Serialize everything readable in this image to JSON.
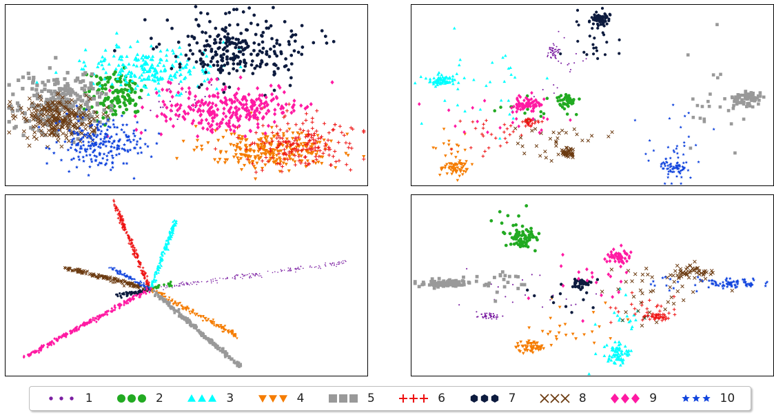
{
  "legend": {
    "items": [
      {
        "label": "1",
        "color": "#7b1fa2",
        "marker": "dot"
      },
      {
        "label": "2",
        "color": "#22aa22",
        "marker": "circle"
      },
      {
        "label": "3",
        "color": "#00ffff",
        "marker": "triangle-up"
      },
      {
        "label": "4",
        "color": "#f57c00",
        "marker": "triangle-down"
      },
      {
        "label": "5",
        "color": "#999999",
        "marker": "square"
      },
      {
        "label": "6",
        "color": "#ee1111",
        "marker": "plus"
      },
      {
        "label": "7",
        "color": "#0d1b3e",
        "marker": "hexagon"
      },
      {
        "label": "8",
        "color": "#6b3a10",
        "marker": "x"
      },
      {
        "label": "9",
        "color": "#ff1aa3",
        "marker": "diamond"
      },
      {
        "label": "10",
        "color": "#1144dd",
        "marker": "star"
      }
    ]
  },
  "chart_data": [
    {
      "type": "scatter",
      "panel": "top-left",
      "title": "",
      "xlabel": "",
      "ylabel": "",
      "xlim": [
        0,
        1
      ],
      "ylim": [
        0,
        1
      ],
      "grid": false,
      "ticks": false,
      "series": [
        {
          "name": "1",
          "clusters": [
            {
              "cx": 0.5,
              "cy": 0.55,
              "sx": 0.06,
              "sy": 0.06,
              "n": 25
            }
          ]
        },
        {
          "name": "2",
          "clusters": [
            {
              "cx": 0.3,
              "cy": 0.49,
              "sx": 0.04,
              "sy": 0.07,
              "n": 120
            }
          ]
        },
        {
          "name": "3",
          "clusters": [
            {
              "cx": 0.4,
              "cy": 0.36,
              "sx": 0.09,
              "sy": 0.06,
              "n": 220
            }
          ]
        },
        {
          "name": "4",
          "clusters": [
            {
              "cx": 0.73,
              "cy": 0.8,
              "sx": 0.09,
              "sy": 0.05,
              "n": 260
            }
          ]
        },
        {
          "name": "5",
          "clusters": [
            {
              "cx": 0.15,
              "cy": 0.55,
              "sx": 0.06,
              "sy": 0.09,
              "n": 260
            }
          ]
        },
        {
          "name": "6",
          "clusters": [
            {
              "cx": 0.82,
              "cy": 0.77,
              "sx": 0.08,
              "sy": 0.07,
              "n": 180
            }
          ]
        },
        {
          "name": "7",
          "clusters": [
            {
              "cx": 0.64,
              "cy": 0.24,
              "sx": 0.09,
              "sy": 0.09,
              "n": 260
            }
          ]
        },
        {
          "name": "8",
          "clusters": [
            {
              "cx": 0.14,
              "cy": 0.63,
              "sx": 0.05,
              "sy": 0.06,
              "n": 240
            }
          ]
        },
        {
          "name": "9",
          "clusters": [
            {
              "cx": 0.62,
              "cy": 0.58,
              "sx": 0.1,
              "sy": 0.07,
              "n": 280
            }
          ]
        },
        {
          "name": "10",
          "clusters": [
            {
              "cx": 0.26,
              "cy": 0.77,
              "sx": 0.06,
              "sy": 0.07,
              "n": 220
            }
          ]
        }
      ]
    },
    {
      "type": "scatter",
      "panel": "top-right",
      "title": "",
      "xlabel": "",
      "ylabel": "",
      "xlim": [
        0,
        1
      ],
      "ylim": [
        0,
        1
      ],
      "grid": false,
      "ticks": false,
      "series": [
        {
          "name": "1",
          "clusters": [
            {
              "cx": 0.39,
              "cy": 0.26,
              "sx": 0.008,
              "sy": 0.02,
              "n": 40
            },
            {
              "cx": 0.4,
              "cy": 0.35,
              "sx": 0.04,
              "sy": 0.08,
              "n": 20
            }
          ]
        },
        {
          "name": "2",
          "clusters": [
            {
              "cx": 0.43,
              "cy": 0.53,
              "sx": 0.012,
              "sy": 0.02,
              "n": 40
            },
            {
              "cx": 0.35,
              "cy": 0.58,
              "sx": 0.06,
              "sy": 0.06,
              "n": 15
            }
          ]
        },
        {
          "name": "3",
          "clusters": [
            {
              "cx": 0.08,
              "cy": 0.42,
              "sx": 0.02,
              "sy": 0.015,
              "n": 70
            },
            {
              "cx": 0.2,
              "cy": 0.45,
              "sx": 0.1,
              "sy": 0.15,
              "n": 30
            }
          ]
        },
        {
          "name": "4",
          "clusters": [
            {
              "cx": 0.12,
              "cy": 0.9,
              "sx": 0.02,
              "sy": 0.02,
              "n": 60
            },
            {
              "cx": 0.1,
              "cy": 0.8,
              "sx": 0.02,
              "sy": 0.05,
              "n": 15
            }
          ]
        },
        {
          "name": "5",
          "clusters": [
            {
              "cx": 0.93,
              "cy": 0.52,
              "sx": 0.02,
              "sy": 0.02,
              "n": 70
            },
            {
              "cx": 0.84,
              "cy": 0.57,
              "sx": 0.05,
              "sy": 0.15,
              "n": 25
            }
          ]
        },
        {
          "name": "6",
          "clusters": [
            {
              "cx": 0.33,
              "cy": 0.65,
              "sx": 0.012,
              "sy": 0.012,
              "n": 30
            },
            {
              "cx": 0.23,
              "cy": 0.73,
              "sx": 0.06,
              "sy": 0.05,
              "n": 25
            }
          ]
        },
        {
          "name": "7",
          "clusters": [
            {
              "cx": 0.52,
              "cy": 0.08,
              "sx": 0.012,
              "sy": 0.02,
              "n": 60
            },
            {
              "cx": 0.5,
              "cy": 0.2,
              "sx": 0.03,
              "sy": 0.08,
              "n": 25
            }
          ]
        },
        {
          "name": "8",
          "clusters": [
            {
              "cx": 0.43,
              "cy": 0.82,
              "sx": 0.01,
              "sy": 0.015,
              "n": 40
            },
            {
              "cx": 0.4,
              "cy": 0.74,
              "sx": 0.06,
              "sy": 0.06,
              "n": 30
            }
          ]
        },
        {
          "name": "9",
          "clusters": [
            {
              "cx": 0.32,
              "cy": 0.55,
              "sx": 0.02,
              "sy": 0.02,
              "n": 70
            },
            {
              "cx": 0.25,
              "cy": 0.62,
              "sx": 0.08,
              "sy": 0.08,
              "n": 20
            }
          ]
        },
        {
          "name": "10",
          "clusters": [
            {
              "cx": 0.73,
              "cy": 0.9,
              "sx": 0.02,
              "sy": 0.02,
              "n": 60
            },
            {
              "cx": 0.74,
              "cy": 0.75,
              "sx": 0.06,
              "sy": 0.12,
              "n": 30
            }
          ]
        }
      ]
    },
    {
      "type": "scatter",
      "panel": "bottom-left",
      "title": "",
      "xlabel": "",
      "ylabel": "",
      "xlim": [
        0,
        1
      ],
      "ylim": [
        0,
        1
      ],
      "grid": false,
      "ticks": false,
      "origin": [
        0.4,
        0.52
      ],
      "series": [
        {
          "name": "1",
          "rays": [
            {
              "end": [
                0.95,
                0.37
              ],
              "n": 170
            }
          ]
        },
        {
          "name": "2",
          "rays": [
            {
              "end": [
                0.46,
                0.49
              ],
              "n": 20
            }
          ]
        },
        {
          "name": "3",
          "rays": [
            {
              "end": [
                0.47,
                0.14
              ],
              "n": 150
            }
          ]
        },
        {
          "name": "4",
          "rays": [
            {
              "end": [
                0.64,
                0.78
              ],
              "n": 150
            }
          ]
        },
        {
          "name": "5",
          "rays": [
            {
              "end": [
                0.65,
                0.95
              ],
              "n": 200
            }
          ]
        },
        {
          "name": "6",
          "rays": [
            {
              "end": [
                0.3,
                0.04
              ],
              "n": 150
            }
          ]
        },
        {
          "name": "7",
          "rays": [
            {
              "end": [
                0.31,
                0.56
              ],
              "n": 60
            }
          ]
        },
        {
          "name": "8",
          "rays": [
            {
              "end": [
                0.16,
                0.4
              ],
              "n": 150
            }
          ]
        },
        {
          "name": "9",
          "rays": [
            {
              "end": [
                0.05,
                0.9
              ],
              "n": 220
            }
          ]
        },
        {
          "name": "10",
          "rays": [
            {
              "end": [
                0.29,
                0.4
              ],
              "n": 80
            }
          ]
        }
      ]
    },
    {
      "type": "scatter",
      "panel": "bottom-right",
      "title": "",
      "xlabel": "",
      "ylabel": "",
      "xlim": [
        0,
        1
      ],
      "ylim": [
        0,
        1
      ],
      "grid": false,
      "ticks": false,
      "series": [
        {
          "name": "1",
          "clusters": [
            {
              "cx": 0.21,
              "cy": 0.67,
              "sx": 0.02,
              "sy": 0.01,
              "n": 40
            },
            {
              "cx": 0.3,
              "cy": 0.55,
              "sx": 0.08,
              "sy": 0.08,
              "n": 20
            }
          ]
        },
        {
          "name": "2",
          "clusters": [
            {
              "cx": 0.31,
              "cy": 0.24,
              "sx": 0.02,
              "sy": 0.025,
              "n": 60
            },
            {
              "cx": 0.28,
              "cy": 0.15,
              "sx": 0.03,
              "sy": 0.06,
              "n": 12
            }
          ]
        },
        {
          "name": "3",
          "clusters": [
            {
              "cx": 0.57,
              "cy": 0.88,
              "sx": 0.015,
              "sy": 0.03,
              "n": 60
            },
            {
              "cx": 0.57,
              "cy": 0.72,
              "sx": 0.04,
              "sy": 0.08,
              "n": 25
            }
          ]
        },
        {
          "name": "4",
          "clusters": [
            {
              "cx": 0.33,
              "cy": 0.84,
              "sx": 0.02,
              "sy": 0.02,
              "n": 50
            },
            {
              "cx": 0.4,
              "cy": 0.75,
              "sx": 0.06,
              "sy": 0.06,
              "n": 25
            }
          ]
        },
        {
          "name": "5",
          "clusters": [
            {
              "cx": 0.09,
              "cy": 0.49,
              "sx": 0.04,
              "sy": 0.012,
              "n": 70
            },
            {
              "cx": 0.21,
              "cy": 0.48,
              "sx": 0.06,
              "sy": 0.03,
              "n": 25
            }
          ]
        },
        {
          "name": "6",
          "clusters": [
            {
              "cx": 0.68,
              "cy": 0.67,
              "sx": 0.02,
              "sy": 0.01,
              "n": 40
            },
            {
              "cx": 0.63,
              "cy": 0.63,
              "sx": 0.04,
              "sy": 0.04,
              "n": 20
            }
          ]
        },
        {
          "name": "7",
          "clusters": [
            {
              "cx": 0.47,
              "cy": 0.49,
              "sx": 0.012,
              "sy": 0.015,
              "n": 40
            },
            {
              "cx": 0.43,
              "cy": 0.55,
              "sx": 0.05,
              "sy": 0.05,
              "n": 15
            }
          ]
        },
        {
          "name": "8",
          "clusters": [
            {
              "cx": 0.78,
              "cy": 0.43,
              "sx": 0.03,
              "sy": 0.02,
              "n": 50
            },
            {
              "cx": 0.68,
              "cy": 0.55,
              "sx": 0.08,
              "sy": 0.08,
              "n": 40
            }
          ]
        },
        {
          "name": "9",
          "clusters": [
            {
              "cx": 0.57,
              "cy": 0.34,
              "sx": 0.015,
              "sy": 0.02,
              "n": 50
            },
            {
              "cx": 0.5,
              "cy": 0.5,
              "sx": 0.06,
              "sy": 0.08,
              "n": 20
            }
          ]
        },
        {
          "name": "10",
          "clusters": [
            {
              "cx": 0.88,
              "cy": 0.49,
              "sx": 0.04,
              "sy": 0.015,
              "n": 70
            },
            {
              "cx": 0.75,
              "cy": 0.48,
              "sx": 0.05,
              "sy": 0.03,
              "n": 15
            }
          ]
        }
      ]
    }
  ]
}
